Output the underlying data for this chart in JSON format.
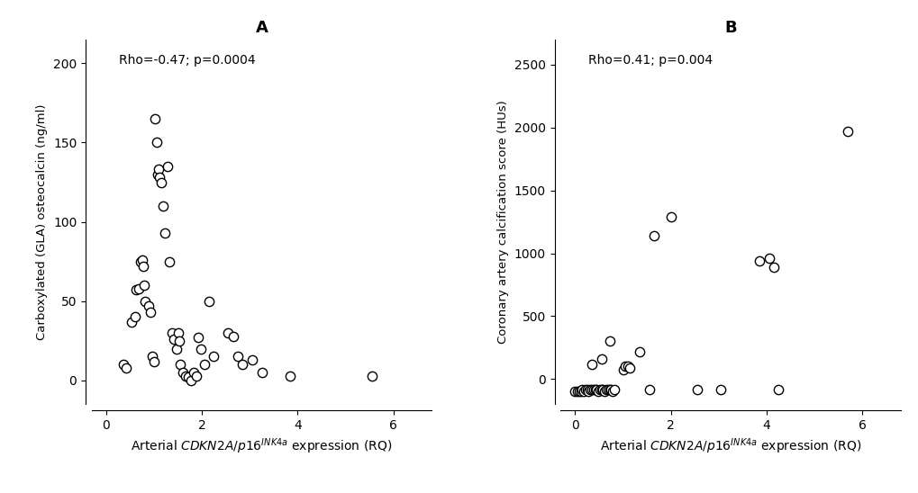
{
  "panel_A": {
    "title": "A",
    "annotation": "Rho=-0.47; p=0.0004",
    "ylabel": "Carboxylated (GLA) osteocalcin (ng/ml)",
    "xlim": [
      -0.3,
      6.8
    ],
    "ylim": [
      -15,
      215
    ],
    "xticks": [
      0,
      2,
      4,
      6
    ],
    "yticks": [
      0,
      50,
      100,
      150,
      200
    ],
    "x": [
      0.35,
      0.42,
      0.52,
      0.6,
      0.63,
      0.68,
      0.72,
      0.75,
      0.78,
      0.8,
      0.82,
      0.88,
      0.92,
      0.97,
      1.0,
      1.02,
      1.05,
      1.07,
      1.1,
      1.12,
      1.15,
      1.18,
      1.22,
      1.28,
      1.32,
      1.38,
      1.42,
      1.47,
      1.5,
      1.52,
      1.55,
      1.6,
      1.65,
      1.72,
      1.78,
      1.82,
      1.88,
      1.92,
      1.97,
      2.05,
      2.15,
      2.25,
      2.55,
      2.65,
      2.75,
      2.85,
      3.05,
      3.25,
      3.85,
      5.55
    ],
    "y": [
      10,
      8,
      37,
      40,
      57,
      58,
      75,
      76,
      72,
      60,
      50,
      47,
      43,
      15,
      12,
      165,
      150,
      130,
      133,
      128,
      125,
      110,
      93,
      135,
      75,
      30,
      26,
      20,
      30,
      25,
      10,
      5,
      3,
      2,
      0,
      5,
      3,
      27,
      20,
      10,
      50,
      15,
      30,
      28,
      15,
      10,
      13,
      5,
      3,
      3
    ]
  },
  "panel_B": {
    "title": "B",
    "annotation": "Rho=0.41; p=0.004",
    "ylabel": "Coronary artery calcification score (HUs)",
    "xlim": [
      -0.3,
      6.8
    ],
    "ylim": [
      -200,
      2700
    ],
    "xticks": [
      0,
      2,
      4,
      6
    ],
    "yticks": [
      0,
      500,
      1000,
      1500,
      2000,
      2500
    ],
    "x": [
      0.0,
      0.05,
      0.08,
      0.12,
      0.15,
      0.18,
      0.22,
      0.25,
      0.28,
      0.32,
      0.35,
      0.38,
      0.42,
      0.45,
      0.48,
      0.52,
      0.55,
      0.58,
      0.62,
      0.65,
      0.68,
      0.72,
      0.75,
      0.78,
      0.82,
      0.35,
      0.55,
      0.72,
      1.0,
      1.05,
      1.1,
      1.15,
      1.35,
      1.55,
      1.65,
      2.0,
      2.55,
      3.05,
      3.85,
      4.05,
      4.15,
      4.25,
      5.7
    ],
    "y": [
      -100,
      -100,
      -100,
      -100,
      -80,
      -100,
      -80,
      -80,
      -100,
      -80,
      -80,
      -80,
      -80,
      -80,
      -100,
      -80,
      -80,
      -80,
      -100,
      -80,
      -80,
      -80,
      -80,
      -100,
      -80,
      120,
      160,
      300,
      75,
      100,
      100,
      90,
      220,
      -80,
      1140,
      1290,
      -80,
      -80,
      940,
      960,
      890,
      -80,
      1970
    ]
  },
  "xlabel": "Arterial CDKN2A/p16 expression (RQ)",
  "figure_bg": "#ffffff",
  "marker_size": 55,
  "marker_facecolor": "white",
  "marker_edgecolor": "black",
  "marker_linewidth": 1.0
}
